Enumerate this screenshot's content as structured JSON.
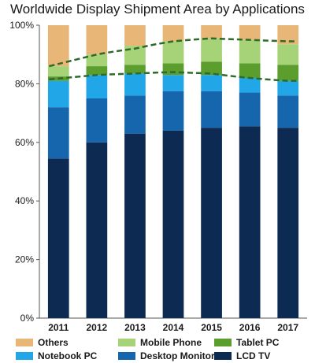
{
  "chart_data": {
    "type": "bar",
    "stacked": true,
    "title": "Worldwide Display Shipment Area by Applications",
    "categories": [
      "2011",
      "2012",
      "2013",
      "2014",
      "2015",
      "2016",
      "2017"
    ],
    "ylim": [
      0,
      100
    ],
    "yticks": [
      "0%",
      "20%",
      "40%",
      "60%",
      "80%",
      "100%"
    ],
    "series": [
      {
        "name": "LCD TV",
        "color": "#0c2a52",
        "values": [
          54.5,
          60,
          63,
          64,
          65,
          65.5,
          65
        ]
      },
      {
        "name": "Desktop Monitor",
        "color": "#1566ad",
        "values": [
          17.5,
          15,
          13,
          13.5,
          12.5,
          11.5,
          11
        ]
      },
      {
        "name": "Notebook PC",
        "color": "#21a6e8",
        "values": [
          9,
          8,
          7.5,
          5.5,
          5.5,
          5,
          5
        ]
      },
      {
        "name": "Tablet PC",
        "color": "#5c9e2e",
        "values": [
          1.5,
          3,
          3,
          4,
          4.5,
          5,
          5.5
        ]
      },
      {
        "name": "Mobile Phone",
        "color": "#a6d377",
        "values": [
          3.5,
          4,
          6.5,
          7.5,
          8,
          8,
          7
        ]
      },
      {
        "name": "Others",
        "color": "#e8b778",
        "values": [
          14,
          10,
          7,
          5.5,
          4.5,
          5,
          6.5
        ]
      }
    ],
    "legend": [
      {
        "name": "Others",
        "color": "#e8b778"
      },
      {
        "name": "Mobile Phone",
        "color": "#a6d377"
      },
      {
        "name": "Tablet PC",
        "color": "#5c9e2e"
      },
      {
        "name": "Notebook PC",
        "color": "#21a6e8"
      },
      {
        "name": "Desktop Monitor",
        "color": "#1566ad"
      },
      {
        "name": "LCD TV",
        "color": "#0c2a52"
      }
    ],
    "annotation_lines": [
      {
        "color": "#2e6b2a",
        "values": [
          81.5,
          83,
          83.5,
          84,
          83.5,
          82,
          81
        ]
      },
      {
        "color": "#2e6b2a",
        "values": [
          86,
          90,
          92,
          94.5,
          95.5,
          95,
          94.5
        ]
      }
    ],
    "grid": false,
    "legend_position": "bottom"
  }
}
